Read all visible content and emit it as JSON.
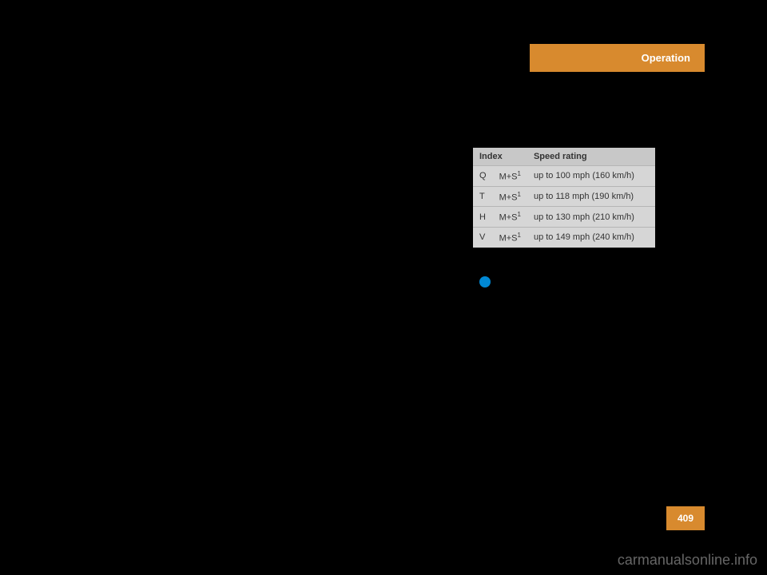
{
  "header": {
    "label": "Operation"
  },
  "table": {
    "type": "table",
    "columns": [
      "Index",
      "",
      "Speed rating"
    ],
    "background_header": "#c8c8c8",
    "background_row": "#d6d6d6",
    "border_color": "#b5b5b5",
    "font_size": 11,
    "rows": [
      {
        "idx": "Q",
        "ms": "M+S",
        "sup": "1",
        "speed": "up to 100 mph (160 km/h)"
      },
      {
        "idx": "T",
        "ms": "M+S",
        "sup": "1",
        "speed": "up to 118 mph (190 km/h)"
      },
      {
        "idx": "H",
        "ms": "M+S",
        "sup": "1",
        "speed": "up to 130 mph (210 km/h)"
      },
      {
        "idx": "V",
        "ms": "M+S",
        "sup": "1",
        "speed": "up to 149 mph (240 km/h)"
      }
    ]
  },
  "info_dot": {
    "color": "#0088d4"
  },
  "page_number": "409",
  "accent_color": "#d88a2e",
  "watermark": "carmanualsonline.info"
}
